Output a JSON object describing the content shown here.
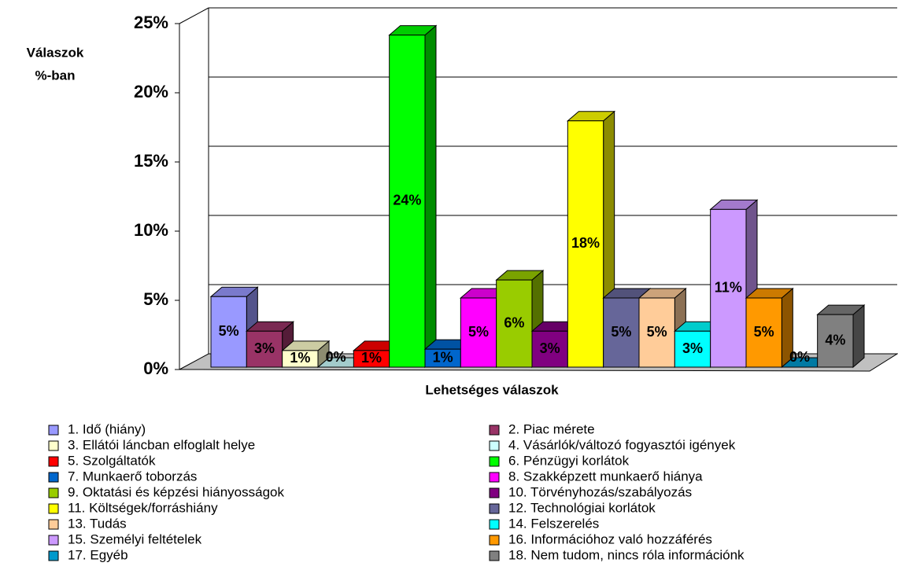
{
  "chart_data": {
    "type": "bar3d",
    "y_label": [
      "Válaszok",
      "%-ban"
    ],
    "x_label": "Lehetséges válaszok",
    "categories": [
      "1. Idő (hiány)",
      "2. Piac mérete",
      "3. Ellátói láncban elfoglalt helye",
      "4. Vásárlók/változó fogyasztói igények",
      "5. Szolgáltatók",
      "6. Pénzügyi korlátok",
      "7. Munkaerő toborzás",
      "8. Szakképzett munkaerő hiánya",
      "9. Oktatási és képzési hiányosságok",
      "10. Törvényhozás/szabályozás",
      "11. Költségek/forráshiány",
      "12. Technológiai korlátok",
      "13. Tudás",
      "14. Felszerelés",
      "15. Személyi feltételek",
      "16. Információhoz való hozzáférés",
      "17. Egyéb",
      "18. Nem tudom, nincs róla információnk"
    ],
    "values": [
      5.1,
      2.6,
      1.2,
      0,
      1.2,
      24.0,
      1.3,
      5.0,
      6.3,
      2.6,
      17.8,
      5.0,
      5.0,
      2.6,
      11.4,
      5.0,
      0,
      3.8
    ],
    "value_labels": [
      "5%",
      "3%",
      "1%",
      "0%",
      "1%",
      "24%",
      "1%",
      "5%",
      "6%",
      "3%",
      "18%",
      "5%",
      "5%",
      "3%",
      "11%",
      "5%",
      "0%",
      "4%"
    ],
    "colors": [
      "#9999ff",
      "#993366",
      "#ffffcc",
      "#ccffff",
      "#ff0000",
      "#00ff00",
      "#0066cc",
      "#ff00ff",
      "#99cc00",
      "#800080",
      "#ffff00",
      "#666699",
      "#ffcc99",
      "#00ffff",
      "#cc99ff",
      "#ff9900",
      "#0099cc",
      "#808080"
    ],
    "ylim": [
      0,
      25
    ],
    "yticks": [
      {
        "value": 0,
        "label": "0%"
      },
      {
        "value": 5,
        "label": "5%"
      },
      {
        "value": 10,
        "label": "10%"
      },
      {
        "value": 15,
        "label": "15%"
      },
      {
        "value": 20,
        "label": "20%"
      },
      {
        "value": 25,
        "label": "25%"
      }
    ],
    "grid": true
  }
}
